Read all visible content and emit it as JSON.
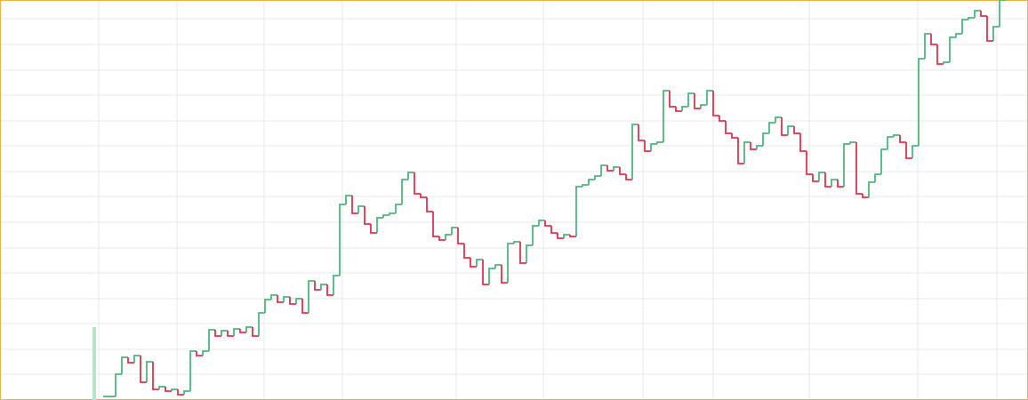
{
  "chart_data": {
    "type": "step",
    "up_color": "#4fb57e",
    "down_color": "#e0334f",
    "ylim": [
      0,
      450
    ],
    "yticks": [
      29,
      57,
      86,
      114,
      143,
      171,
      200,
      229,
      257,
      286,
      314,
      343,
      371,
      400,
      429
    ],
    "grid": true,
    "values": [
      4,
      4,
      29,
      48,
      42,
      50,
      20,
      43,
      12,
      15,
      10,
      12,
      6,
      10,
      55,
      50,
      55,
      79,
      72,
      78,
      72,
      80,
      76,
      82,
      72,
      98,
      113,
      118,
      110,
      116,
      108,
      114,
      98,
      134,
      124,
      130,
      118,
      140,
      220,
      230,
      210,
      218,
      198,
      188,
      205,
      208,
      210,
      220,
      248,
      256,
      232,
      228,
      212,
      184,
      180,
      186,
      194,
      176,
      160,
      150,
      158,
      130,
      148,
      152,
      132,
      176,
      178,
      154,
      174,
      196,
      202,
      196,
      188,
      182,
      186,
      184,
      240,
      242,
      248,
      252,
      264,
      258,
      262,
      254,
      248,
      310,
      292,
      280,
      288,
      290,
      348,
      330,
      325,
      330,
      345,
      328,
      332,
      348,
      320,
      314,
      300,
      295,
      266,
      290,
      282,
      286,
      300,
      312,
      318,
      298,
      308,
      300,
      280,
      254,
      246,
      256,
      240,
      248,
      240,
      288,
      290,
      232,
      228,
      245,
      254,
      282,
      296,
      298,
      290,
      272,
      286,
      384,
      412,
      400,
      378,
      380,
      408,
      412,
      428,
      430,
      438,
      432,
      404,
      420,
      450
    ]
  }
}
